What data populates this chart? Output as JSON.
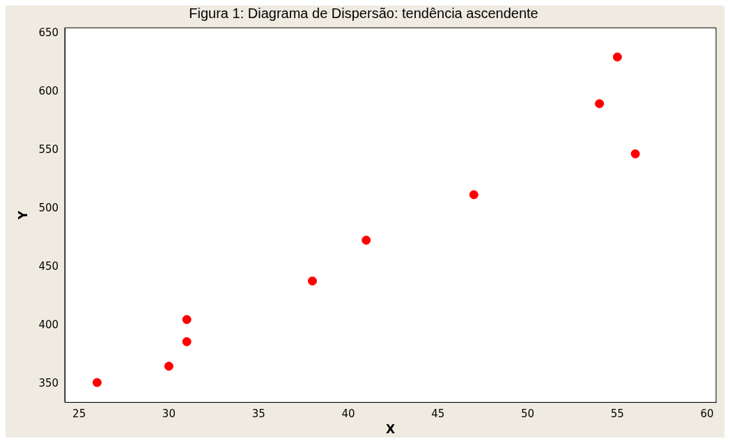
{
  "chart_data": {
    "type": "scatter",
    "title": "Figura 1: Diagrama de Dispersão: tendência ascendente",
    "xlabel": "X",
    "ylabel": "Y",
    "series": [
      {
        "color": "#ff0000",
        "x": [
          26,
          30,
          31,
          31,
          38,
          41,
          47,
          54,
          55,
          56
        ],
        "values": [
          351,
          365,
          386,
          405,
          438,
          473,
          512,
          590,
          630,
          547
        ]
      }
    ],
    "xlim": [
      24.2,
      60.5
    ],
    "xticks": [
      25,
      30,
      35,
      40,
      45,
      50,
      55,
      60
    ],
    "ylim": [
      334,
      655
    ],
    "yticks": [
      350,
      400,
      450,
      500,
      550,
      600,
      650
    ],
    "grid": false,
    "legend": false,
    "marker": "circle"
  }
}
